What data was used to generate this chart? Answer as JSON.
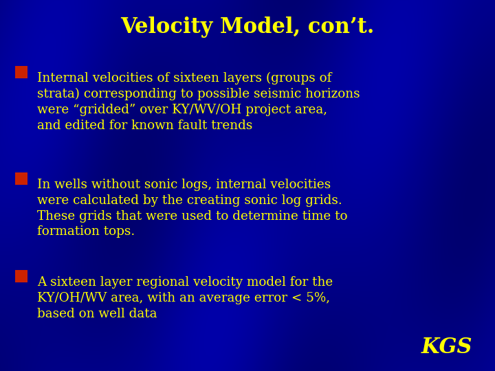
{
  "title": "Velocity Model, con’t.",
  "title_color": "#FFFF00",
  "title_fontsize": 22,
  "background_color": "#00008B",
  "text_color": "#FFFF00",
  "bullet_color": "#CC2200",
  "bullet_items": [
    "Internal velocities of sixteen layers (groups of\nstrata) corresponding to possible seismic horizons\nwere “gridded” over KY/WV/OH project area,\nand edited for known fault trends",
    "In wells without sonic logs, internal velocities\nwere calculated by the creating sonic log grids.\nThese grids that were used to determine time to\nformation tops.",
    "A sixteen layer regional velocity model for the\nKY/OH/WV area, with an average error < 5%,\nbased on well data"
  ],
  "kgs_text": "KGS",
  "kgs_color": "#FFFF00",
  "kgs_fontsize": 22,
  "fig_width": 7.2,
  "fig_height": 5.4,
  "dpi": 100
}
